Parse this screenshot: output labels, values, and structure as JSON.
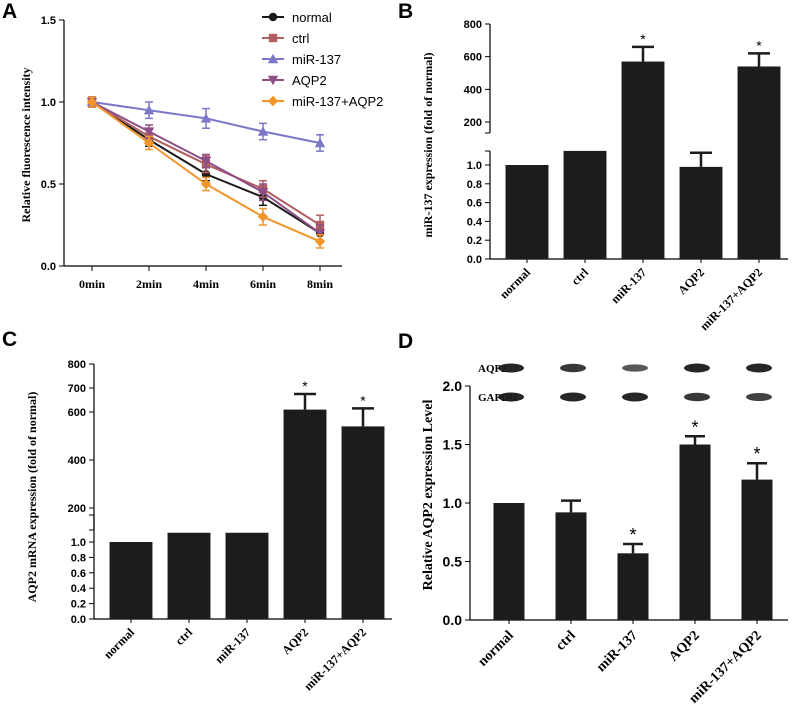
{
  "panels": {
    "a": "A",
    "b": "B",
    "c": "C",
    "d": "D"
  },
  "chart_data": [
    {
      "id": "A",
      "type": "line",
      "xlabel": "",
      "ylabel": "Relative fluorescence intensity",
      "x": [
        "0min",
        "2min",
        "4min",
        "6min",
        "8min"
      ],
      "ylim": [
        0.0,
        1.5
      ],
      "yticks": [
        "0.0",
        "0.5",
        "1.0",
        "1.5"
      ],
      "series": [
        {
          "name": "normal",
          "color": "#1a1a1a",
          "marker": "circle",
          "values": [
            1.0,
            0.77,
            0.56,
            0.42,
            0.2
          ],
          "err": [
            0.03,
            0.04,
            0.04,
            0.05,
            0.05
          ]
        },
        {
          "name": "ctrl",
          "color": "#b06060",
          "marker": "square",
          "values": [
            1.0,
            0.79,
            0.62,
            0.47,
            0.25
          ],
          "err": [
            0.03,
            0.04,
            0.05,
            0.05,
            0.06
          ]
        },
        {
          "name": "miR-137",
          "color": "#7b78c8",
          "marker": "triangle-up",
          "values": [
            1.0,
            0.95,
            0.9,
            0.82,
            0.75
          ],
          "err": [
            0.03,
            0.05,
            0.06,
            0.05,
            0.05
          ]
        },
        {
          "name": "AQP2",
          "color": "#8e4f86",
          "marker": "triangle-down",
          "values": [
            1.0,
            0.82,
            0.64,
            0.45,
            0.2
          ],
          "err": [
            0.03,
            0.04,
            0.04,
            0.05,
            0.05
          ]
        },
        {
          "name": "miR-137+AQP2",
          "color": "#f0962b",
          "marker": "diamond",
          "values": [
            1.0,
            0.75,
            0.5,
            0.3,
            0.15
          ],
          "err": [
            0.03,
            0.04,
            0.04,
            0.05,
            0.04
          ]
        }
      ]
    },
    {
      "id": "B",
      "type": "bar",
      "ylabel": "miR-137 expression (fold of normal)",
      "categories": [
        "normal",
        "ctrl",
        "miR-137",
        "AQP2",
        "miR-137+AQP2"
      ],
      "values": [
        1.0,
        1.15,
        570,
        0.98,
        540
      ],
      "err": [
        0,
        0,
        90,
        0.15,
        80
      ],
      "significant": [
        false,
        false,
        true,
        false,
        true
      ],
      "star": "*",
      "axis_break": true,
      "lower_yticks": [
        "0.0",
        "0.2",
        "0.4",
        "0.6",
        "0.8",
        "1.0"
      ],
      "upper_yticks": [
        "200",
        "400",
        "600",
        "800"
      ]
    },
    {
      "id": "C",
      "type": "bar",
      "ylabel": "AQP2 mRNA expression (fold of normal)",
      "categories": [
        "normal",
        "ctrl",
        "miR-137",
        "AQP2",
        "miR-137+AQP2"
      ],
      "values": [
        1.0,
        1.12,
        1.12,
        610,
        540
      ],
      "err": [
        0,
        0,
        0,
        65,
        75
      ],
      "significant": [
        false,
        false,
        false,
        true,
        true
      ],
      "star": "*",
      "axis_break": true,
      "lower_yticks": [
        "0.0",
        "0.2",
        "0.4",
        "0.6",
        "0.8",
        "1.0"
      ],
      "upper_yticks": [
        "200",
        "400",
        "600",
        "700",
        "800"
      ]
    },
    {
      "id": "D",
      "type": "bar",
      "ylabel": "Relative AQP2 expression Level",
      "categories": [
        "normal",
        "ctrl",
        "miR-137",
        "AQP2",
        "miR-137+AQP2"
      ],
      "values": [
        1.0,
        0.92,
        0.57,
        1.5,
        1.2
      ],
      "err": [
        0,
        0.1,
        0.08,
        0.07,
        0.14
      ],
      "significant": [
        false,
        false,
        true,
        true,
        true
      ],
      "star": "*",
      "ylim": [
        0.0,
        2.0
      ],
      "yticks": [
        "0.0",
        "0.5",
        "1.0",
        "1.5",
        "2.0"
      ],
      "blot_labels": [
        "AQP2",
        "GAPDH"
      ]
    }
  ]
}
